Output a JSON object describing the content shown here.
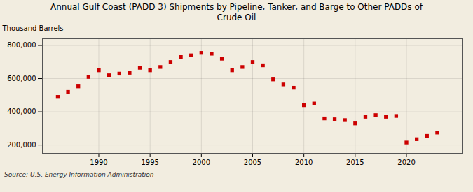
{
  "chart_data": {
    "type": "scatter",
    "title": "Annual Gulf Coast (PADD 3) Shipments by Pipeline, Tanker, and Barge to Other PADDs of\nCrude Oil",
    "ylabel": "Thousand Barrels",
    "source": "Source: U.S. Energy Information Administration",
    "x": [
      1986,
      1987,
      1988,
      1989,
      1990,
      1991,
      1992,
      1993,
      1994,
      1995,
      1996,
      1997,
      1998,
      1999,
      2000,
      2001,
      2002,
      2003,
      2004,
      2005,
      2006,
      2007,
      2008,
      2009,
      2010,
      2011,
      2012,
      2013,
      2014,
      2015,
      2016,
      2017,
      2018,
      2019,
      2020,
      2021,
      2022,
      2023
    ],
    "values": [
      490000,
      520000,
      553000,
      610000,
      650000,
      620000,
      630000,
      635000,
      665000,
      650000,
      670000,
      700000,
      730000,
      740000,
      755000,
      750000,
      720000,
      650000,
      670000,
      700000,
      680000,
      595000,
      565000,
      545000,
      440000,
      450000,
      360000,
      355000,
      350000,
      330000,
      370000,
      380000,
      370000,
      375000,
      215000,
      235000,
      255000,
      275000
    ],
    "color": "#cc0000",
    "marker": "square",
    "ylim": [
      150000,
      840000
    ],
    "yticks": [
      {
        "value": 200000,
        "label": "200,000"
      },
      {
        "value": 400000,
        "label": "400,000"
      },
      {
        "value": 600000,
        "label": "600,000"
      },
      {
        "value": 800000,
        "label": "800,000"
      }
    ],
    "xlim": [
      1984.5,
      2025.5
    ],
    "xticks": [
      1990,
      1995,
      2000,
      2005,
      2010,
      2015,
      2020
    ],
    "grid": true
  }
}
